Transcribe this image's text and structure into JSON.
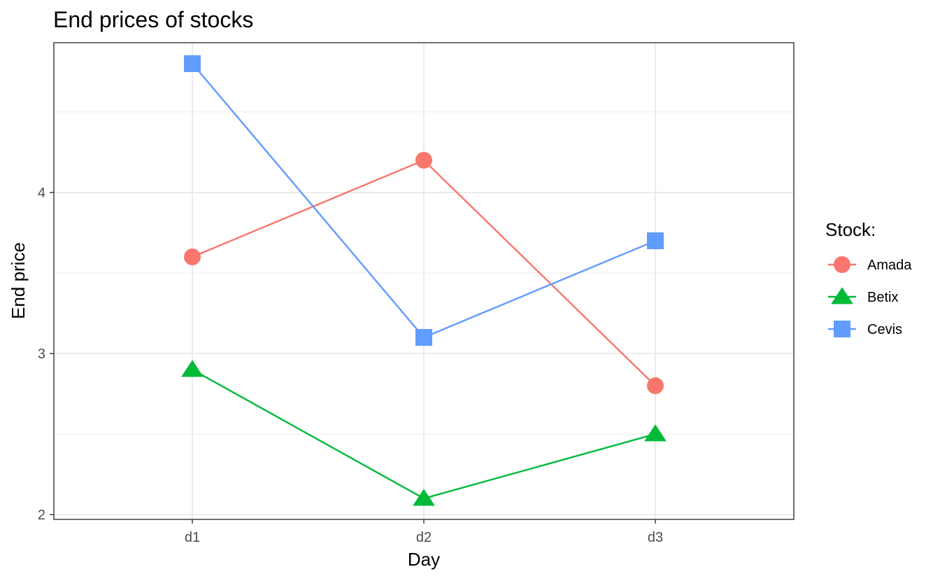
{
  "chart_data": {
    "type": "line",
    "title": "End prices of stocks",
    "xlabel": "Day",
    "ylabel": "End price",
    "categories": [
      "d1",
      "d2",
      "d3"
    ],
    "ylim": [
      1.97,
      4.93
    ],
    "yticks": [
      2,
      3,
      4
    ],
    "yminor": [
      2.5,
      3.5,
      4.5
    ],
    "grid": true,
    "legend": {
      "title": "Stock:",
      "position": "right"
    },
    "series": [
      {
        "name": "Amada",
        "values": [
          3.6,
          4.2,
          2.8
        ],
        "color": "#F8766D",
        "marker": "circle"
      },
      {
        "name": "Betix",
        "values": [
          2.9,
          2.1,
          2.5
        ],
        "color": "#00BA38",
        "marker": "triangle"
      },
      {
        "name": "Cevis",
        "values": [
          4.8,
          3.1,
          3.7
        ],
        "color": "#619CFF",
        "marker": "square"
      }
    ]
  }
}
